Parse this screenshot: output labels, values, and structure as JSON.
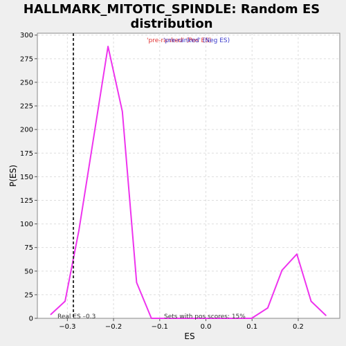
{
  "chart_data": {
    "type": "line",
    "title": "HALLMARK_MITOTIC_SPINDLE: Random ES distribution",
    "title_lines": [
      "HALLMARK_MITOTIC_SPINDLE: Random ES",
      "distribution"
    ],
    "xlabel": "ES",
    "ylabel": "P(ES)",
    "xlim": [
      -0.365,
      0.29
    ],
    "ylim": [
      0,
      302
    ],
    "x_ticks": [
      -0.3,
      -0.2,
      -0.1,
      0.0,
      0.1,
      0.2
    ],
    "x_tick_labels": [
      "−0.3",
      "−0.2",
      "−0.1",
      "0.0",
      "0.1",
      "0.2"
    ],
    "y_ticks": [
      0,
      25,
      50,
      75,
      100,
      125,
      150,
      175,
      200,
      225,
      250,
      275,
      300
    ],
    "y_tick_labels": [
      "0",
      "25",
      "50",
      "75",
      "100",
      "125",
      "150",
      "175",
      "200",
      "225",
      "250",
      "275",
      "300"
    ],
    "grid": true,
    "series": [
      {
        "color": "#ee33ee",
        "points": [
          [
            -0.336,
            4
          ],
          [
            -0.305,
            18
          ],
          [
            -0.275,
            93
          ],
          [
            -0.243,
            192
          ],
          [
            -0.212,
            288
          ],
          [
            -0.181,
            219
          ],
          [
            -0.15,
            38
          ],
          [
            -0.118,
            0
          ],
          [
            -0.087,
            0
          ],
          [
            -0.056,
            0
          ],
          [
            -0.025,
            0
          ],
          [
            0.006,
            0
          ],
          [
            0.037,
            0
          ],
          [
            0.068,
            0
          ],
          [
            0.099,
            0
          ],
          [
            0.134,
            11
          ],
          [
            0.165,
            51
          ],
          [
            0.197,
            68
          ],
          [
            0.228,
            18
          ],
          [
            0.26,
            3
          ]
        ]
      }
    ],
    "real_es": -0.287,
    "real_es_label": "Real ES –0.3",
    "pos_scores_label": "Sets with pos scores: 15%",
    "legend": {
      "pos_label": "'pre-ranked' (Pos ES)",
      "neg_label": "'pre-ranked' (Neg ES)",
      "pos_color": "#e03030",
      "neg_color": "#3a3acc",
      "placement": "top-center"
    }
  }
}
